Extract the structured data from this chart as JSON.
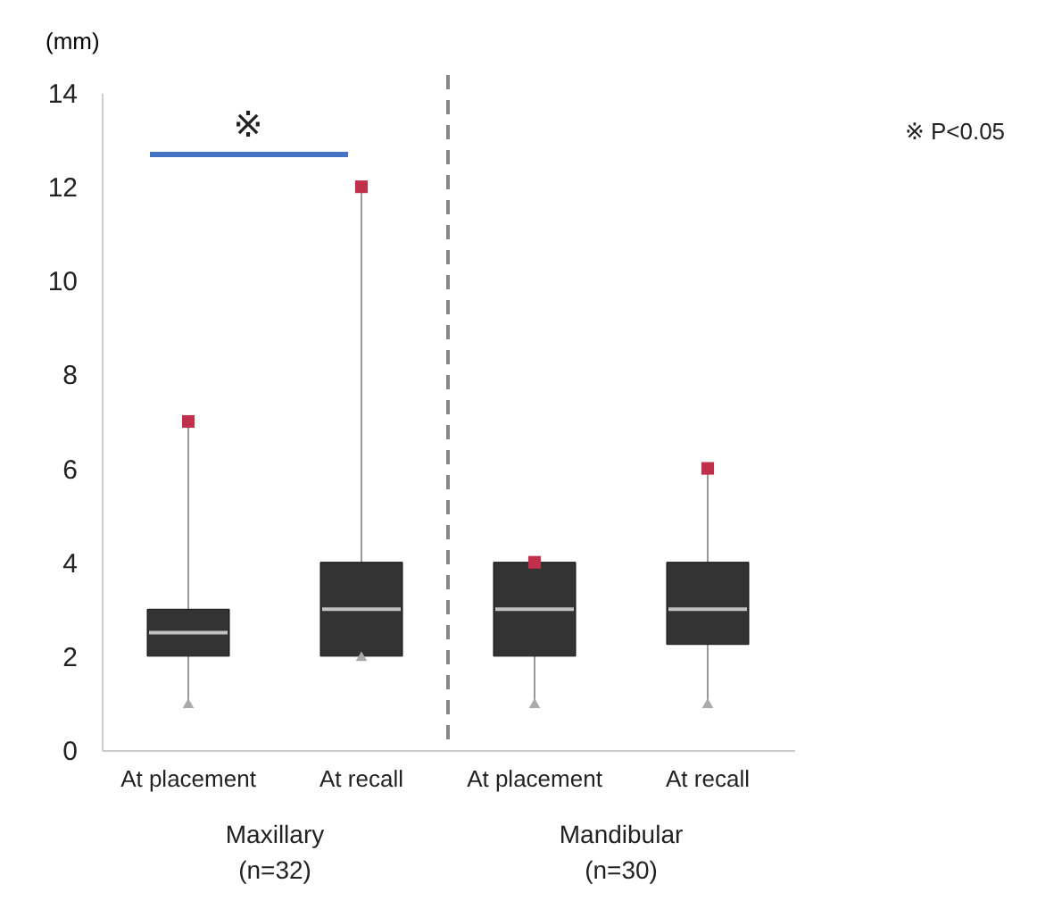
{
  "chart_data": {
    "type": "box",
    "ylabel": "(mm)",
    "color": "#333333",
    "categories": [
      "At placement",
      "At recall",
      "At placement",
      "At recall"
    ],
    "boxes": [
      {
        "low": 1,
        "q1": 2,
        "median": 2.5,
        "q3": 3,
        "high": 7
      },
      {
        "low": 2,
        "q1": 2,
        "median": 3,
        "q3": 4,
        "high": 12
      },
      {
        "low": 1,
        "q1": 2,
        "median": 3,
        "q3": 4,
        "high": 4
      },
      {
        "low": 1,
        "q1": 2.25,
        "median": 3,
        "q3": 4,
        "high": 6
      }
    ],
    "ylim": [
      0,
      14
    ],
    "yticks": [
      0,
      2,
      4,
      6,
      8,
      10,
      12,
      14
    ],
    "grid": false,
    "annotations": [
      "※",
      "※  P<0.05",
      "Maxillary\n(n=32)",
      "Mandibular\n(n=30)"
    ]
  }
}
